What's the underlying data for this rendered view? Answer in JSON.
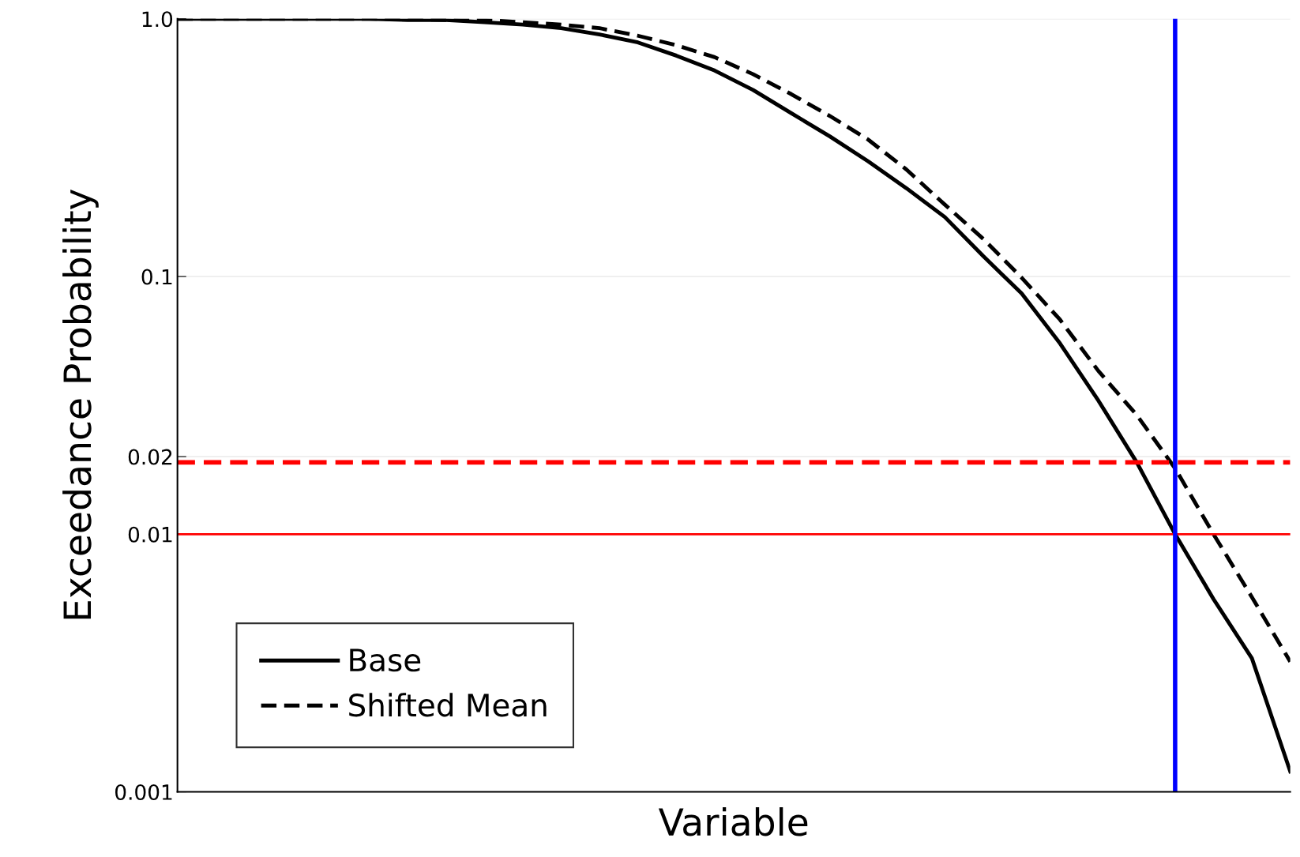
{
  "chart_data": {
    "type": "line",
    "xlabel": "Variable",
    "ylabel": "Exceedance Probability",
    "categories": [
      null,
      null,
      null,
      null,
      null,
      null,
      null,
      null,
      null,
      null,
      null,
      null,
      null,
      null,
      null,
      null,
      null,
      null,
      null,
      null,
      null,
      null,
      null,
      null,
      null,
      null,
      null,
      null,
      null,
      null
    ],
    "series": [
      {
        "name": "Base",
        "color": "#000000",
        "line_style": "solid",
        "values": [
          1.0,
          1.0,
          1.0,
          1.0,
          1.0,
          1.0,
          0.99,
          0.99,
          0.97,
          0.95,
          0.92,
          0.87,
          0.81,
          0.72,
          0.63,
          0.53,
          0.43,
          0.35,
          0.28,
          0.22,
          0.17,
          0.12,
          0.086,
          0.055,
          0.033,
          0.019,
          0.01,
          0.0056,
          0.0033,
          0.0012
        ]
      },
      {
        "name": "Shifted Mean",
        "color": "#000000",
        "line_style": "dashed",
        "values": [
          1.0,
          1.0,
          1.0,
          1.0,
          1.0,
          1.0,
          1.0,
          0.99,
          0.99,
          0.97,
          0.95,
          0.92,
          0.86,
          0.79,
          0.71,
          0.61,
          0.51,
          0.42,
          0.34,
          0.26,
          0.19,
          0.14,
          0.099,
          0.068,
          0.043,
          0.029,
          0.018,
          0.01,
          0.0057,
          0.0032
        ]
      }
    ],
    "log": "y",
    "ylim": [
      0.001,
      1.0
    ],
    "yticks": [
      0.001,
      0.01,
      0.02,
      0.1,
      {
        "value": 1.0,
        "label": "1.0"
      }
    ],
    "tick_labels": "y",
    "grid": "y",
    "legend": "bottom left",
    "marker": "none",
    "ref_lines": [
      {
        "axis": "y",
        "value": 0.019,
        "color": "#ff0000",
        "line_style": "dashed"
      },
      {
        "axis": "y",
        "value": 0.01,
        "color": "#ff0000",
        "line_style": "solid"
      }
    ]
  }
}
